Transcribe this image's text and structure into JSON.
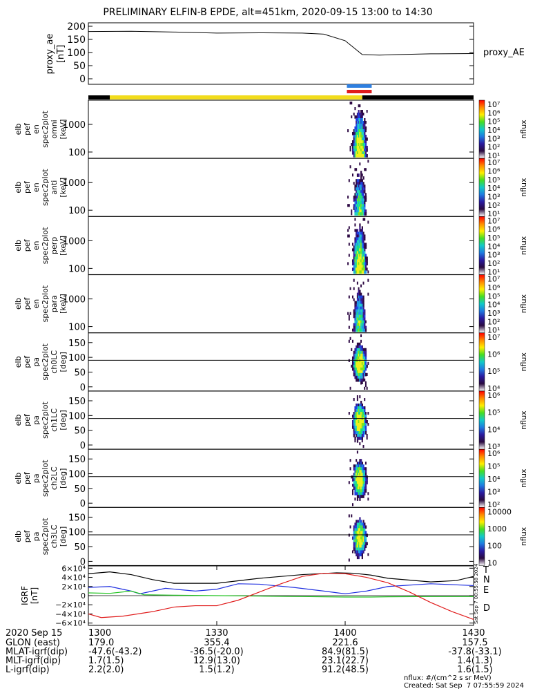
{
  "title": "PRELIMINARY ELFIN-B EPDE, alt=451km, 2020-09-15 13:00 to 14:30",
  "chart_data": [
    {
      "type": "line",
      "id": "proxy_ae",
      "ylabel": [
        "proxy_ae",
        "[nT]"
      ],
      "series_label": "proxy_AE",
      "yticks": [
        "200",
        "150",
        "100",
        "50",
        "0"
      ],
      "ylim": [
        0,
        210
      ],
      "x_minutes": [
        0,
        10,
        20,
        30,
        40,
        50,
        55,
        60,
        64,
        68,
        72,
        80,
        90
      ],
      "values": [
        180,
        181,
        178,
        174,
        175,
        174,
        170,
        145,
        92,
        90,
        92,
        95,
        96
      ]
    },
    {
      "type": "bar",
      "id": "status_bars",
      "note": "",
      "segments": [
        {
          "from": 0,
          "to": 5,
          "color": "#000000"
        },
        {
          "from": 5,
          "to": 64,
          "color": "#f2dc1c"
        },
        {
          "from": 64,
          "to": 90,
          "color": "#000000"
        }
      ],
      "markers": [
        {
          "from": 60.4,
          "to": 66.2,
          "color": "#2e7fe0"
        },
        {
          "from": 60.4,
          "to": 66.2,
          "color": "#e01b1b"
        }
      ]
    },
    {
      "type": "heatmap",
      "panels": [
        {
          "id": "omni",
          "ylabel": [
            "elb",
            "pef",
            "en",
            "spec2plot",
            "omni",
            "[keV]"
          ],
          "yticks": [
            "1000",
            "100"
          ],
          "cbar": [
            "10⁷",
            "10⁶",
            "10⁵",
            "10⁴",
            "10³",
            "10²",
            "10¹"
          ],
          "cbar_title": "nflux"
        },
        {
          "id": "anti",
          "ylabel": [
            "elb",
            "pef",
            "en",
            "spec2plot",
            "anti",
            "[keV]"
          ],
          "yticks": [
            "1000",
            "100"
          ],
          "cbar": [
            "10⁷",
            "10⁶",
            "10⁵",
            "10⁴",
            "10³",
            "10²",
            "10¹"
          ],
          "cbar_title": "nflux"
        },
        {
          "id": "perp",
          "ylabel": [
            "elb",
            "pef",
            "en",
            "spec2plot",
            "perp",
            "[keV]"
          ],
          "yticks": [
            "1000",
            "100"
          ],
          "cbar": [
            "10⁷",
            "10⁶",
            "10⁵",
            "10⁴",
            "10³",
            "10²",
            "10¹"
          ],
          "cbar_title": "nflux"
        },
        {
          "id": "para",
          "ylabel": [
            "elb",
            "pef",
            "en",
            "spec2plot",
            "para",
            "[keV]"
          ],
          "yticks": [
            "1000",
            "100"
          ],
          "cbar": [
            "10⁷",
            "10⁶",
            "10⁵",
            "10⁴",
            "10³",
            "10²",
            "10¹"
          ],
          "cbar_title": "nflux"
        },
        {
          "id": "ch0LC",
          "ylabel": [
            "elb",
            "pef",
            "pa",
            "spec2plot",
            "ch0LC",
            "[deg]"
          ],
          "yticks": [
            "150",
            "100",
            "50",
            "0"
          ],
          "cbar": [
            "10⁷",
            "10⁶",
            "10⁵",
            "10⁴"
          ],
          "cbar_title": "nflux"
        },
        {
          "id": "ch1LC",
          "ylabel": [
            "elb",
            "pef",
            "pa",
            "spec2plot",
            "ch1LC",
            "[deg]"
          ],
          "yticks": [
            "150",
            "100",
            "50",
            "0"
          ],
          "cbar": [
            "10⁶",
            "10⁵",
            "10⁴",
            "10³"
          ],
          "cbar_title": "nflux"
        },
        {
          "id": "ch2LC",
          "ylabel": [
            "elb",
            "pef",
            "pa",
            "spec2plot",
            "ch2LC",
            "[deg]"
          ],
          "yticks": [
            "150",
            "100",
            "50",
            "0"
          ],
          "cbar": [
            "10⁶",
            "10⁵",
            "10⁴",
            "10³",
            "10²"
          ],
          "cbar_title": "nflux"
        },
        {
          "id": "ch3LC",
          "ylabel": [
            "elb",
            "pef",
            "pa",
            "spec2plot",
            "ch3LC",
            "[deg]"
          ],
          "yticks": [
            "150",
            "100",
            "50",
            "0"
          ],
          "cbar": [
            "10000",
            "1000",
            "100",
            "10"
          ],
          "cbar_title": "nflux"
        }
      ]
    },
    {
      "type": "line",
      "id": "igrf",
      "ylabel": [
        "IGRF",
        "[nT]"
      ],
      "yticks": [
        "6×10⁴",
        "4×10⁴",
        "2×10⁴",
        "0",
        "−2×10⁴",
        "−4×10⁴",
        "−6×10⁴"
      ],
      "ylim": [
        -65000,
        65000
      ],
      "legend": [
        "T",
        "N",
        "E",
        "D"
      ],
      "series": [
        {
          "name": "T",
          "color": "#000000",
          "x": [
            0,
            5,
            10,
            15,
            20,
            30,
            40,
            50,
            58,
            62,
            66,
            70,
            80,
            86,
            90
          ],
          "values": [
            48000,
            52000,
            46000,
            35000,
            27000,
            27000,
            38000,
            46000,
            50000,
            49000,
            45000,
            38000,
            30000,
            33000,
            42000
          ]
        },
        {
          "name": "N",
          "color": "#1f2fe0",
          "x": [
            0,
            5,
            10,
            12,
            18,
            25,
            30,
            35,
            40,
            48,
            55,
            60,
            65,
            70,
            80,
            90
          ],
          "values": [
            18000,
            20000,
            10000,
            4000,
            16000,
            10000,
            14000,
            26000,
            25000,
            18000,
            10000,
            4000,
            10000,
            20000,
            26000,
            22000
          ]
        },
        {
          "name": "E",
          "color": "#1fc31f",
          "x": [
            0,
            5,
            10,
            13,
            20,
            30,
            40,
            50,
            60,
            66,
            70,
            80,
            90
          ],
          "values": [
            6000,
            5000,
            10000,
            2000,
            1000,
            0,
            -1000,
            -2000,
            -3000,
            -3000,
            -2500,
            -2000,
            -2000
          ]
        },
        {
          "name": "D",
          "color": "#e01b1b",
          "x": [
            0,
            3,
            8,
            15,
            20,
            25,
            30,
            35,
            40,
            45,
            50,
            55,
            60,
            65,
            70,
            75,
            80,
            85,
            90
          ],
          "values": [
            -40000,
            -48000,
            -45000,
            -35000,
            -25000,
            -22000,
            -22000,
            -10000,
            8000,
            26000,
            42000,
            49000,
            48000,
            40000,
            28000,
            8000,
            -15000,
            -35000,
            -52000
          ]
        }
      ]
    }
  ],
  "time_axis": {
    "ticks": [
      "1300",
      "1330",
      "1400",
      "1430"
    ]
  },
  "ephemeris": {
    "date": "2020 Sep 15",
    "rows": [
      {
        "label": "GLON (east)",
        "values": [
          "179.0",
          "355.4",
          "221.6",
          "157.5"
        ]
      },
      {
        "label": "MLAT-igrf(dip)",
        "values": [
          "-47.6(-43.2)",
          "-36.5(-20.0)",
          "84.9(81.5)",
          "-37.8(-33.1)"
        ]
      },
      {
        "label": "MLT-igrf(dip)",
        "values": [
          "1.7(1.5)",
          "12.9(13.0)",
          "23.1(22.7)",
          "1.4(1.3)"
        ]
      },
      {
        "label": "L-igrf(dip)",
        "values": [
          "2.2(2.0)",
          "1.5(1.2)",
          "91.2(48.5)",
          "1.6(1.5)"
        ]
      }
    ]
  },
  "footer": {
    "units": "nflux: #/(cm^2 s sr MeV)",
    "created": "Created: Sat Sep  7 07:55:59 2024",
    "stamp": "Sat Sep  7 00:55:58 2024"
  }
}
